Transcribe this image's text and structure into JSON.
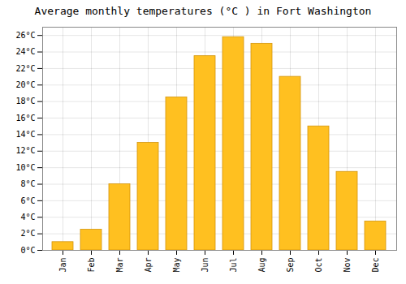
{
  "chart_data": {
    "type": "bar",
    "title": "Average monthly temperatures (°C ) in Fort Washington",
    "categories": [
      "Jan",
      "Feb",
      "Mar",
      "Apr",
      "May",
      "Jun",
      "Jul",
      "Aug",
      "Sep",
      "Oct",
      "Nov",
      "Dec"
    ],
    "values": [
      1,
      2.5,
      8,
      13,
      18.5,
      23.5,
      25.8,
      25,
      21,
      15,
      9.5,
      3.5
    ],
    "color": "#FFC020",
    "ylim": [
      0,
      27
    ],
    "yticks": [
      {
        "value": 0,
        "label": "0°C"
      },
      {
        "value": 2,
        "label": "2°C"
      },
      {
        "value": 4,
        "label": "4°C"
      },
      {
        "value": 6,
        "label": "6°C"
      },
      {
        "value": 8,
        "label": "8°C"
      },
      {
        "value": 10,
        "label": "10°C"
      },
      {
        "value": 12,
        "label": "12°C"
      },
      {
        "value": 14,
        "label": "14°C"
      },
      {
        "value": 16,
        "label": "16°C"
      },
      {
        "value": 18,
        "label": "18°C"
      },
      {
        "value": 20,
        "label": "20°C"
      },
      {
        "value": 22,
        "label": "22°C"
      },
      {
        "value": 24,
        "label": "24°C"
      },
      {
        "value": 26,
        "label": "26°C"
      }
    ],
    "grid": true
  }
}
